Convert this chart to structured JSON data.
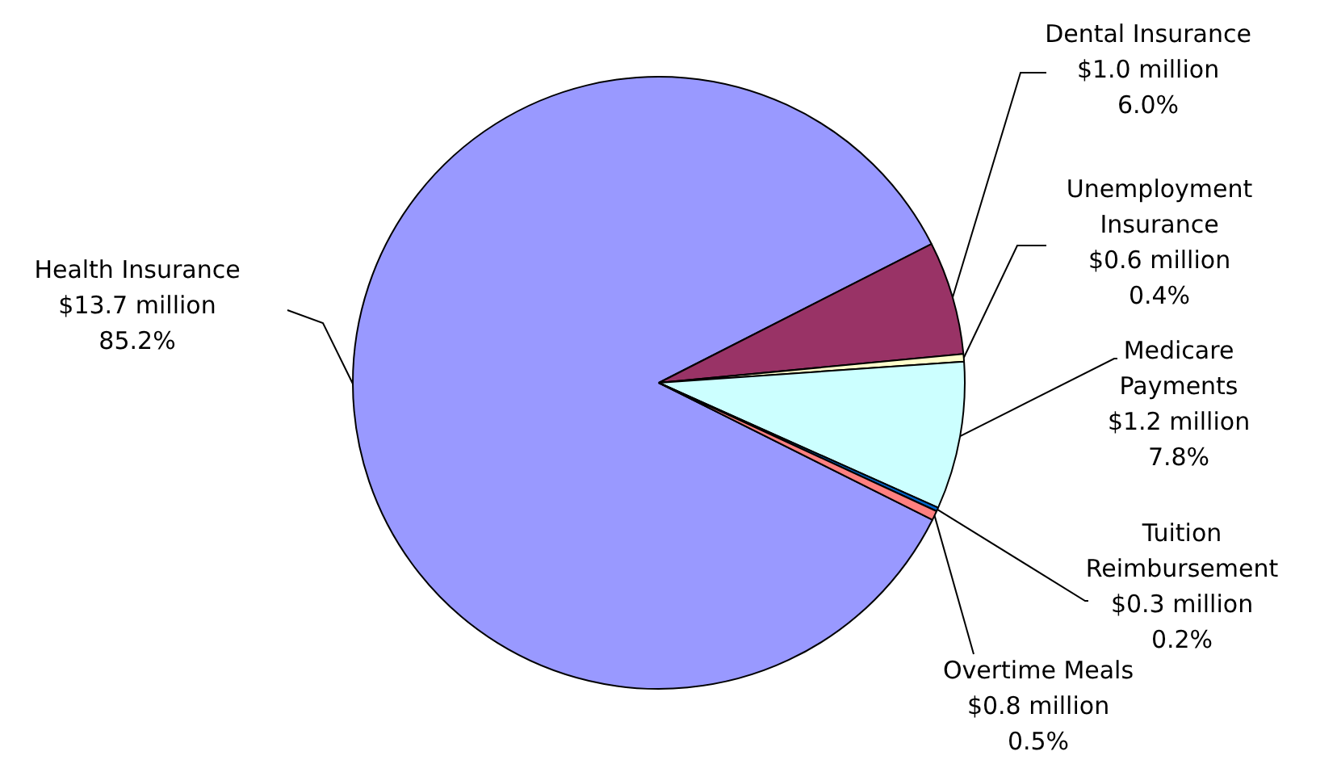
{
  "chart_data": {
    "type": "pie",
    "categories": [
      "Health Insurance",
      "Dental Insurance",
      "Unemployment Insurance",
      "Medicare Payments",
      "Tuition Reimbursement",
      "Overtime Meals"
    ],
    "values": [
      85.2,
      6.0,
      0.4,
      7.8,
      0.2,
      0.5
    ],
    "colors": [
      "#9999ff",
      "#993366",
      "#ffffcc",
      "#ccffff",
      "#0066cc",
      "#ff8080"
    ],
    "value_labels": [
      "$13.7 million\n85.2%",
      "$1.0 million\n6.0%",
      "$0.6 million\n0.4%",
      "$1.2 million\n7.8%",
      "$0.3 million\n0.2%",
      "$0.8 million\n0.5%"
    ],
    "legend": false
  }
}
